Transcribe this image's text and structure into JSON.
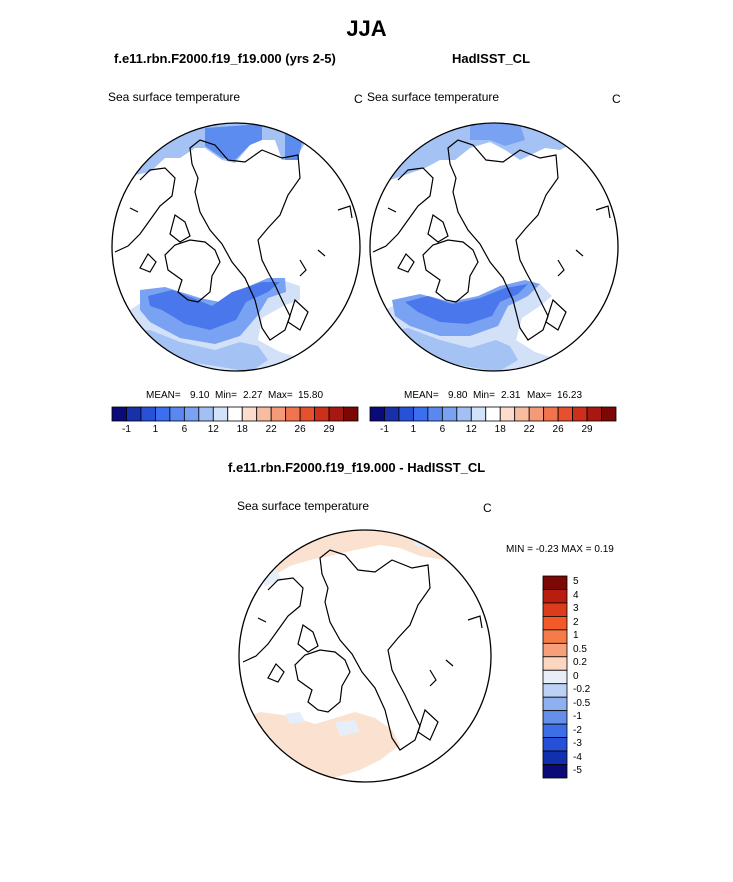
{
  "title": "JJA",
  "panel_left": {
    "case_title": "f.e11.rbn.F2000.f19_f19.000 (yrs 2-5)",
    "variable": "Sea surface temperature",
    "units": "C",
    "stats": {
      "mean_label": "MEAN=",
      "mean": "9.10",
      "min_label": "Min=",
      "min": "2.27",
      "max_label": "Max=",
      "max": "15.80"
    }
  },
  "panel_right": {
    "case_title": "HadISST_CL",
    "variable": "Sea surface temperature",
    "units": "C",
    "stats": {
      "mean_label": "MEAN=",
      "mean": "9.80",
      "min_label": "Min=",
      "min": "2.31",
      "max_label": "Max=",
      "max": "16.23"
    }
  },
  "panel_diff": {
    "case_title": "f.e11.rbn.F2000.f19_f19.000 - HadISST_CL",
    "variable": "Sea surface temperature",
    "units": "C",
    "minmax": "MIN =  -0.23 MAX =   0.19"
  },
  "colorbar_top": {
    "colors": [
      "#0a0a78",
      "#1830a8",
      "#2850d8",
      "#3c6ef0",
      "#5a88f0",
      "#7aa2f2",
      "#a2c0f4",
      "#d2e2f8",
      "#ffffff",
      "#fcdccc",
      "#f8bca0",
      "#f49a78",
      "#f0744e",
      "#e6502e",
      "#cc301a",
      "#a81810",
      "#7c0806"
    ],
    "tick_labels": [
      "-1",
      "1",
      "6",
      "12",
      "18",
      "22",
      "26",
      "29"
    ]
  },
  "colorbar_diff": {
    "colors": [
      "#7c0806",
      "#b81e10",
      "#dc3c1c",
      "#f25a2a",
      "#f47c48",
      "#f6a07a",
      "#fbd6c0",
      "#e8eef8",
      "#bcd2f4",
      "#8eb0f0",
      "#6490ea",
      "#3c6ee8",
      "#2650d8",
      "#1030b0",
      "#0a0a78"
    ],
    "tick_labels": [
      "5",
      "4",
      "3",
      "2",
      "1",
      "0.5",
      "0.2",
      "0",
      "-0.2",
      "-0.5",
      "-1",
      "-2",
      "-3",
      "-4",
      "-5"
    ]
  }
}
